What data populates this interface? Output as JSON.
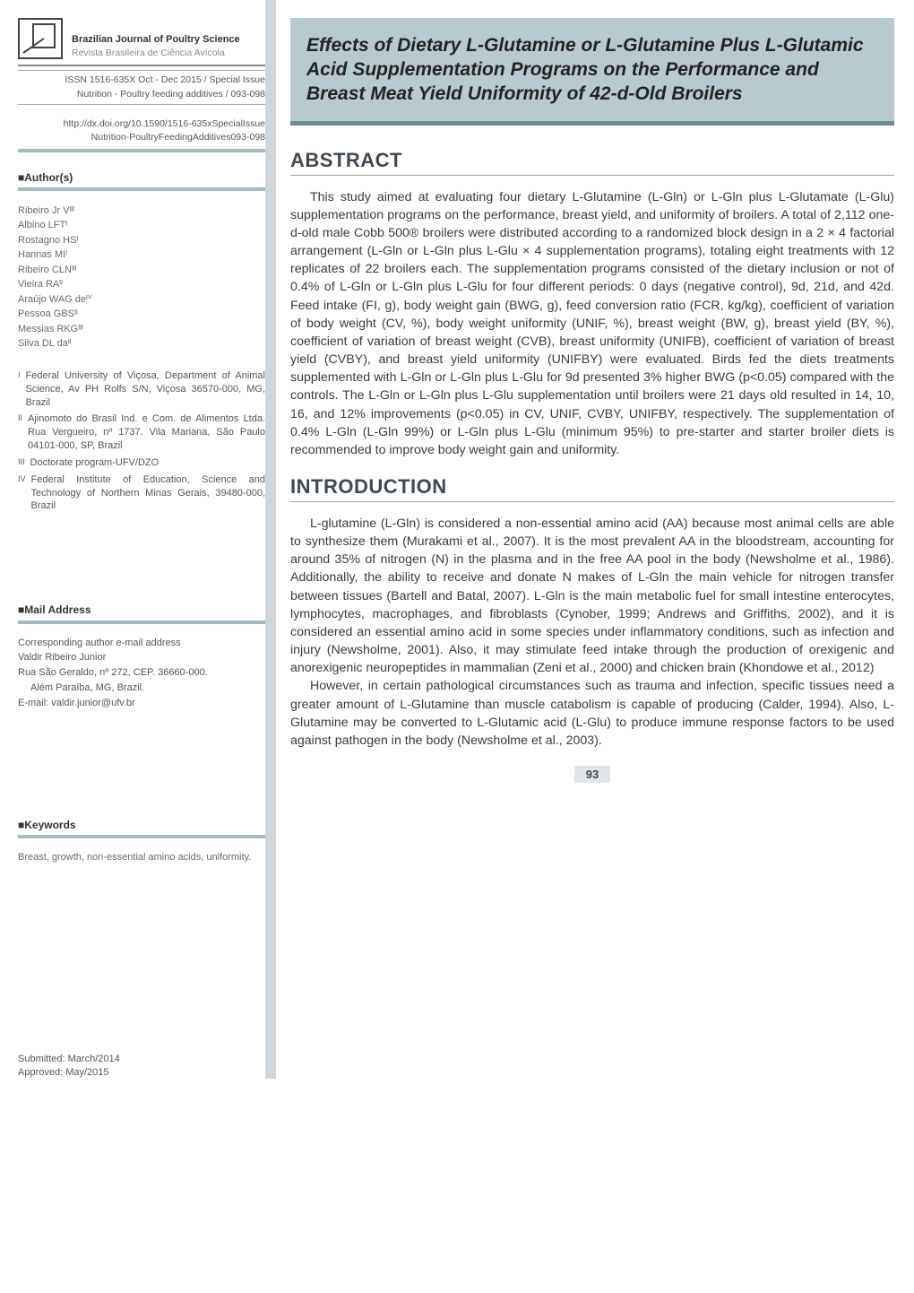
{
  "journal": {
    "en": "Brazilian Journal of Poultry Science",
    "pt": "Revista Brasileira de Ciência Avícola",
    "issn": "ISSN 1516-635X Oct - Dec 2015 / Special Issue",
    "section": "Nutrition - Poultry feeding additives / 093-098",
    "doi": "http://dx.doi.org/10.1590/1516-635xSpecialIssue",
    "doi_sub": "Nutrition-PoultryFeedingAdditives093-098"
  },
  "headings": {
    "authors": "■Author(s)",
    "mail": "■Mail Address",
    "keywords": "■Keywords",
    "abstract": "ABSTRACT",
    "introduction": "INTRODUCTION"
  },
  "authors": [
    "Ribeiro Jr Vᴵᴵᴵ",
    "Albino LFTᴵ",
    "Rostagno HSᴵ",
    "Hannas MIᴵ",
    "Ribeiro CLNᴵᴵᴵ",
    "Vieira RAᴵᴵ",
    "Araújo WAG deᴵⱽ",
    "Pessoa GBSᴵᴵ",
    "Messias RKGᴵᴵᴵ",
    "Silva DL daᴵᴵ"
  ],
  "affiliations": [
    {
      "n": "I",
      "t": "Federal University of Viçosa, Department of Animal Science, Av PH Rolfs S/N, Viçosa 36570-000, MG, Brazil"
    },
    {
      "n": "II",
      "t": "Ajinomoto do Brasil Ind. e Com. de Alimentos Ltda. Rua Vergueiro, nº 1737. Vila Mariana, São Paulo 04101-000, SP, Brazil"
    },
    {
      "n": "III",
      "t": "Doctorate program-UFV/DZO"
    },
    {
      "n": "IV",
      "t": "Federal Institute of Education, Science and Technology of Northern Minas Gerais, 39480-000, Brazil"
    }
  ],
  "mail": {
    "l1": "Corresponding author e-mail address",
    "l2": "Valdir Ribeiro Junior",
    "l3": "Rua São Geraldo, nº 272, CEP. 36660-000.",
    "l4": "Além Paraíba, MG, Brazil.",
    "l5": "E-mail: valdir.junior@ufv.br"
  },
  "keywords": "Breast, growth, non-essential amino acids, uniformity.",
  "submitted": "Submitted: March/2014",
  "approved": "Approved: May/2015",
  "title": "Effects of Dietary L-Glutamine or L-Glutamine Plus L-Glutamic Acid Supplementation Programs on the Performance and Breast Meat Yield Uniformity of 42-d-Old Broilers",
  "abstract": "This study aimed at evaluating four dietary L-Glutamine (L-Gln) or L-Gln plus L-Glutamate (L-Glu) supplementation programs on the performance, breast yield, and uniformity of broilers. A total of 2,112 one-d-old male Cobb 500® broilers were distributed according to a randomized block design in a 2 × 4 factorial arrangement (L-Gln or L-Gln plus L-Glu × 4 supplementation programs), totaling eight treatments with 12 replicates of 22 broilers each. The supplementation programs consisted of the dietary inclusion or not of 0.4% of L-Gln or L-Gln plus L-Glu for four different periods: 0 days (negative control), 9d, 21d, and 42d. Feed intake (FI, g), body weight gain (BWG, g), feed conversion ratio (FCR, kg/kg), coefficient of variation of body weight (CV, %), body weight uniformity (UNIF, %), breast weight (BW, g), breast yield (BY, %), coefficient of variation of breast weight (CVB), breast uniformity (UNIFB), coefficient of variation of breast yield (CVBY), and breast yield uniformity (UNIFBY) were evaluated. Birds fed the diets treatments supplemented with L-Gln or L-Gln plus L-Glu for 9d presented 3% higher BWG (p<0.05) compared with the controls. The L-Gln or L-Gln plus L-Glu supplementation until broilers were 21 days old resulted in 14, 10, 16, and 12% improvements (p<0.05) in CV, UNIF, CVBY, UNIFBY, respectively. The supplementation of 0.4% L-Gln (L-Gln 99%) or L-Gln plus L-Glu (minimum 95%) to pre-starter and starter broiler diets is recommended to improve body weight gain and uniformity.",
  "intro_p1": "L-glutamine (L-Gln) is considered a non-essential amino acid (AA) because most animal cells are able to synthesize them (Murakami et al., 2007). It is the most prevalent AA in the bloodstream, accounting for around 35% of nitrogen (N) in the plasma and in the free AA pool in the body (Newsholme et al., 1986). Additionally, the ability to receive and donate N makes of L-Gln the main vehicle for nitrogen transfer between tissues (Bartell and Batal, 2007). L-Gln is the main metabolic fuel for small intestine enterocytes, lymphocytes, macrophages, and fibroblasts (Cynober, 1999; Andrews and Griffiths, 2002), and it is considered an essential amino acid in some species under inflammatory conditions, such as infection and injury (Newsholme, 2001). Also, it may stimulate feed intake through the production of orexigenic and anorexigenic neuropeptides in mammalian (Zeni et al., 2000) and chicken brain (Khondowe et al., 2012)",
  "intro_p2": "However, in certain pathological circumstances such as trauma and infection, specific tissues need a greater amount of L-Glutamine than muscle catabolism is capable of producing (Calder, 1994). Also, L-Glutamine may be converted to L-Glutamic acid (L-Glu) to produce immune response factors to be used against pathogen in the body (Newsholme et al., 2003).",
  "page_num": "93",
  "colors": {
    "band_bg": "#b9c9d0",
    "band_border": "#6f8a95",
    "rule": "#a8b9c0",
    "heading": "#404852"
  }
}
